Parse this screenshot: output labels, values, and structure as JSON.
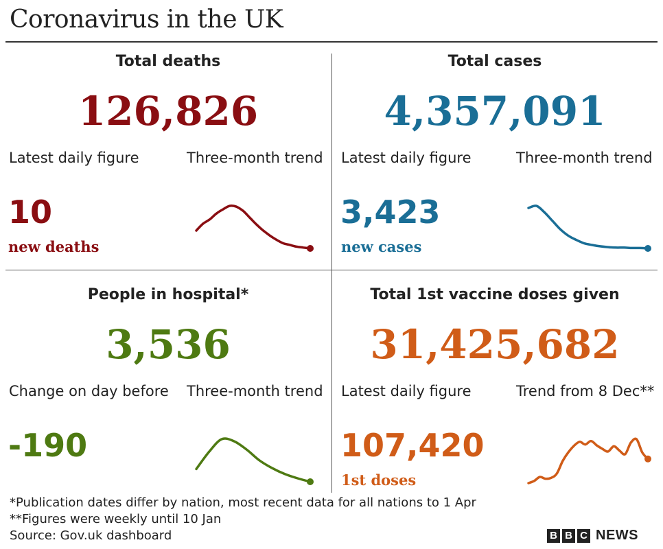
{
  "title": "Coronavirus in the UK",
  "panels": {
    "deaths": {
      "heading": "Total deaths",
      "total": "126,826",
      "left_label": "Latest daily figure",
      "right_label": "Three-month trend",
      "daily": "10",
      "unit": "new deaths",
      "color": "#8a0e12"
    },
    "cases": {
      "heading": "Total cases",
      "total": "4,357,091",
      "left_label": "Latest daily figure",
      "right_label": "Three-month trend",
      "daily": "3,423",
      "unit": "new cases",
      "color": "#1a6e96"
    },
    "hospital": {
      "heading": "People in hospital*",
      "total": "3,536",
      "left_label": "Change on day before",
      "right_label": "Three-month trend",
      "daily": "-190",
      "unit": "",
      "color": "#4e7a12"
    },
    "vaccine": {
      "heading": "Total 1st vaccine doses given",
      "total": "31,425,682",
      "left_label": "Latest daily figure",
      "right_label": "Trend from 8 Dec**",
      "daily": "107,420",
      "unit": "1st doses",
      "color": "#d05c18"
    }
  },
  "chart_data": [
    {
      "type": "line",
      "name": "deaths-trend",
      "values": [
        0.42,
        0.58,
        0.68,
        0.82,
        0.92,
        1.0,
        0.98,
        0.88,
        0.72,
        0.56,
        0.42,
        0.3,
        0.2,
        0.12,
        0.08,
        0.04,
        0.02,
        0.0
      ],
      "color": "#8a0e12"
    },
    {
      "type": "line",
      "name": "cases-trend",
      "values": [
        0.95,
        1.0,
        0.85,
        0.65,
        0.45,
        0.3,
        0.2,
        0.12,
        0.08,
        0.05,
        0.03,
        0.02,
        0.02,
        0.01,
        0.01,
        0.0
      ],
      "color": "#1a6e96"
    },
    {
      "type": "line",
      "name": "hospital-trend",
      "values": [
        0.3,
        0.7,
        1.0,
        0.95,
        0.75,
        0.5,
        0.32,
        0.18,
        0.08,
        0.0
      ],
      "color": "#4e7a12"
    },
    {
      "type": "line",
      "name": "vaccine-trend",
      "values": [
        0.0,
        0.05,
        0.14,
        0.1,
        0.12,
        0.22,
        0.5,
        0.7,
        0.85,
        0.94,
        0.88,
        0.96,
        0.86,
        0.78,
        0.72,
        0.84,
        0.74,
        0.66,
        0.92,
        1.0,
        0.7,
        0.55
      ],
      "color": "#d05c18"
    }
  ],
  "notes": {
    "note1": "*Publication dates differ by nation, most recent data for all nations to 1 Apr",
    "note2": "**Figures were weekly until 10 Jan",
    "source": "Source: Gov.uk dashboard"
  },
  "brand": {
    "letters": [
      "B",
      "B",
      "C"
    ],
    "news": "NEWS"
  }
}
